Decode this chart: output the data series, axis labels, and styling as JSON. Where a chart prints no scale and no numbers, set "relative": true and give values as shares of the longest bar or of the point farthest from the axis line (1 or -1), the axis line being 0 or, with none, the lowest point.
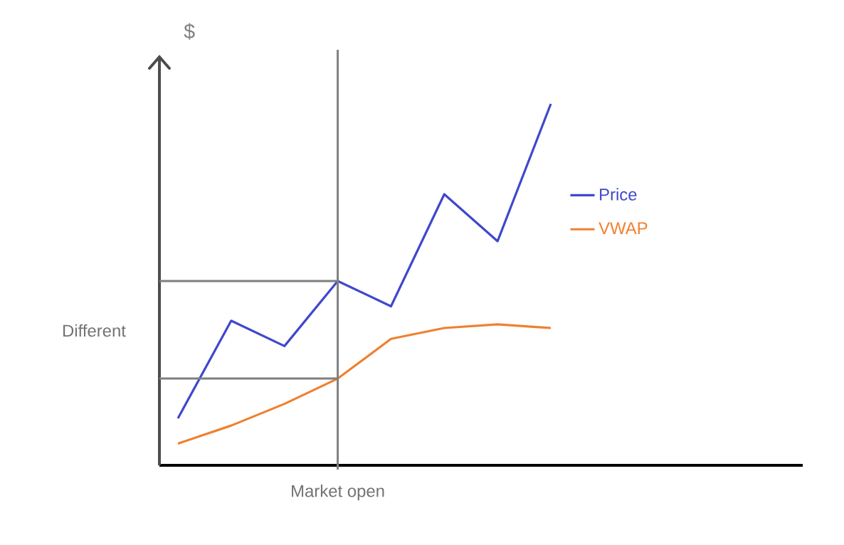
{
  "chart_data": {
    "type": "line",
    "relative": true,
    "ylabel": "$",
    "legend": "right",
    "marker": "none",
    "line_style": "solid",
    "categories": [
      null,
      null,
      null,
      null,
      null,
      null,
      null,
      null
    ],
    "series": [
      {
        "name": "Price",
        "color": "#3f48cc",
        "values": [
          0.13,
          0.4,
          0.33,
          0.51,
          0.44,
          0.75,
          0.62,
          1
        ]
      },
      {
        "name": "VWAP",
        "color": "#f08030",
        "values": [
          0.06,
          0.11,
          0.17,
          0.24,
          0.35,
          0.38,
          0.39,
          0.38
        ]
      }
    ],
    "ref_lines": [
      {
        "axis": "y",
        "value": 0.51,
        "color": "#7f7f7f"
      },
      {
        "axis": "y",
        "value": 0.24,
        "color": "#7f7f7f"
      }
    ],
    "annotations": [
      "Different",
      "Market open"
    ]
  }
}
